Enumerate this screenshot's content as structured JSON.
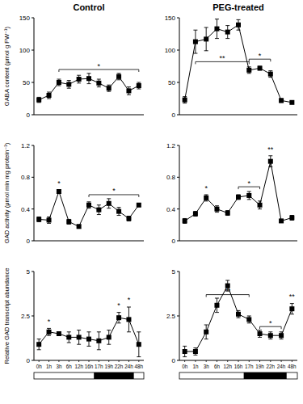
{
  "chart_data": [
    {
      "type": "line",
      "title": "Control",
      "y_label": "GABA content (μmol g FW⁻¹)",
      "categories": [
        "0h",
        "1h",
        "3h",
        "6h",
        "12h",
        "16h",
        "17h",
        "19h",
        "22h",
        "24h",
        "48h"
      ],
      "series": [
        {
          "color": "#000000",
          "marker": "square",
          "values": [
            23,
            30,
            50,
            47,
            55,
            56,
            49,
            41,
            59,
            37,
            45
          ],
          "errors": [
            4,
            5,
            5,
            6,
            6,
            8,
            6,
            5,
            5,
            6,
            5
          ]
        }
      ],
      "ylim": [
        0,
        150
      ],
      "yticks": [
        0,
        50,
        100,
        150
      ],
      "tick_labels": "y",
      "annotations": [
        {
          "text": "*",
          "from": "3h",
          "to": "48h",
          "y": 70
        }
      ]
    },
    {
      "type": "line",
      "title": "PEG-treated",
      "categories": [
        "0h",
        "1h",
        "3h",
        "6h",
        "12h",
        "16h",
        "17h",
        "19h",
        "22h",
        "24h",
        "48h"
      ],
      "series": [
        {
          "color": "#000000",
          "marker": "square",
          "values": [
            23,
            113,
            117,
            133,
            128,
            139,
            69,
            72,
            63,
            22,
            19
          ],
          "errors": [
            5,
            18,
            18,
            15,
            10,
            8,
            5,
            3,
            5,
            3,
            2
          ]
        }
      ],
      "ylim": [
        0,
        150
      ],
      "yticks": [
        0,
        50,
        100,
        150
      ],
      "tick_labels": "y",
      "annotations": [
        {
          "text": "**",
          "from": "1h",
          "to": "17h",
          "y": 82
        },
        {
          "text": "*",
          "from": "17h",
          "to": "22h",
          "y": 86
        }
      ]
    },
    {
      "type": "line",
      "y_label": "GAD activity (μmol min mg protein⁻¹)",
      "categories": [
        "0h",
        "1h",
        "3h",
        "6h",
        "12h",
        "16h",
        "17h",
        "19h",
        "22h",
        "24h",
        "48h"
      ],
      "series": [
        {
          "color": "#000000",
          "marker": "square",
          "values": [
            0.27,
            0.26,
            0.62,
            0.24,
            0.18,
            0.45,
            0.39,
            0.47,
            0.37,
            0.28,
            0.45
          ],
          "errors": [
            0.03,
            0.04,
            0.02,
            0.03,
            0.02,
            0.04,
            0.06,
            0.06,
            0.05,
            0.03,
            0.02
          ]
        }
      ],
      "ylim": [
        0,
        1.2
      ],
      "yticks": [
        0,
        0.4,
        0.8,
        1.2
      ],
      "tick_labels": "y",
      "annotations": [
        {
          "text": "*",
          "from": "3h",
          "to": "3h",
          "y": 0.68
        },
        {
          "text": "*",
          "from": "16h",
          "to": "48h",
          "y": 0.58
        }
      ]
    },
    {
      "type": "line",
      "categories": [
        "0h",
        "1h",
        "3h",
        "6h",
        "12h",
        "16h",
        "17h",
        "19h",
        "22h",
        "24h",
        "48h"
      ],
      "series": [
        {
          "color": "#000000",
          "marker": "square",
          "values": [
            0.25,
            0.34,
            0.54,
            0.4,
            0.35,
            0.55,
            0.57,
            0.45,
            1.0,
            0.25,
            0.29
          ],
          "errors": [
            0.03,
            0.03,
            0.04,
            0.04,
            0.03,
            0.03,
            0.05,
            0.05,
            0.07,
            0.02,
            0.03
          ]
        }
      ],
      "ylim": [
        0,
        1.2
      ],
      "yticks": [
        0,
        0.4,
        0.8,
        1.2
      ],
      "tick_labels": "y",
      "annotations": [
        {
          "text": "*",
          "from": "3h",
          "to": "3h",
          "y": 0.62
        },
        {
          "text": "*",
          "from": "16h",
          "to": "19h",
          "y": 0.68
        },
        {
          "text": "**",
          "from": "22h",
          "to": "22h",
          "y": 1.1
        }
      ]
    },
    {
      "type": "line",
      "y_label": "Relative GAD transcript abundance",
      "categories": [
        "0h",
        "1h",
        "3h",
        "6h",
        "12h",
        "16h",
        "17h",
        "19h",
        "22h",
        "24h",
        "48h"
      ],
      "series": [
        {
          "color": "#000000",
          "marker": "square",
          "values": [
            0.9,
            1.6,
            1.5,
            1.3,
            1.3,
            1.2,
            1.1,
            1.3,
            2.4,
            2.3,
            0.9
          ],
          "errors": [
            0.3,
            0.2,
            0.1,
            0.3,
            0.4,
            0.4,
            0.5,
            0.4,
            0.3,
            0.7,
            0.7
          ]
        }
      ],
      "ylim": [
        0,
        5
      ],
      "yticks": [
        0,
        2.5,
        5
      ],
      "annotations": [
        {
          "text": "*",
          "from": "1h",
          "to": "1h",
          "y": 2.0
        },
        {
          "text": "*",
          "from": "22h",
          "to": "22h",
          "y": 2.9
        },
        {
          "text": "*",
          "from": "24h",
          "to": "24h",
          "y": 3.2
        }
      ],
      "dark_period": [
        "17h",
        "24h"
      ]
    },
    {
      "type": "line",
      "categories": [
        "0h",
        "1h",
        "3h",
        "6h",
        "12h",
        "16h",
        "17h",
        "19h",
        "22h",
        "24h",
        "48h"
      ],
      "series": [
        {
          "color": "#000000",
          "marker": "square",
          "values": [
            0.5,
            0.5,
            1.6,
            3.1,
            4.2,
            2.6,
            2.3,
            1.5,
            1.4,
            1.4,
            2.9
          ],
          "errors": [
            0.3,
            0.2,
            0.4,
            0.4,
            0.3,
            0.2,
            0.2,
            0.2,
            0.2,
            0.2,
            0.3
          ]
        }
      ],
      "ylim": [
        0,
        5
      ],
      "yticks": [
        0,
        2.5,
        5
      ],
      "annotations": [
        {
          "text": "**",
          "from": "3h",
          "to": "17h",
          "y": 3.7
        },
        {
          "text": "*",
          "from": "19h",
          "to": "24h",
          "y": 1.9
        },
        {
          "text": "**",
          "from": "48h",
          "to": "48h",
          "y": 3.4
        }
      ],
      "dark_period": [
        "17h",
        "24h"
      ]
    }
  ]
}
